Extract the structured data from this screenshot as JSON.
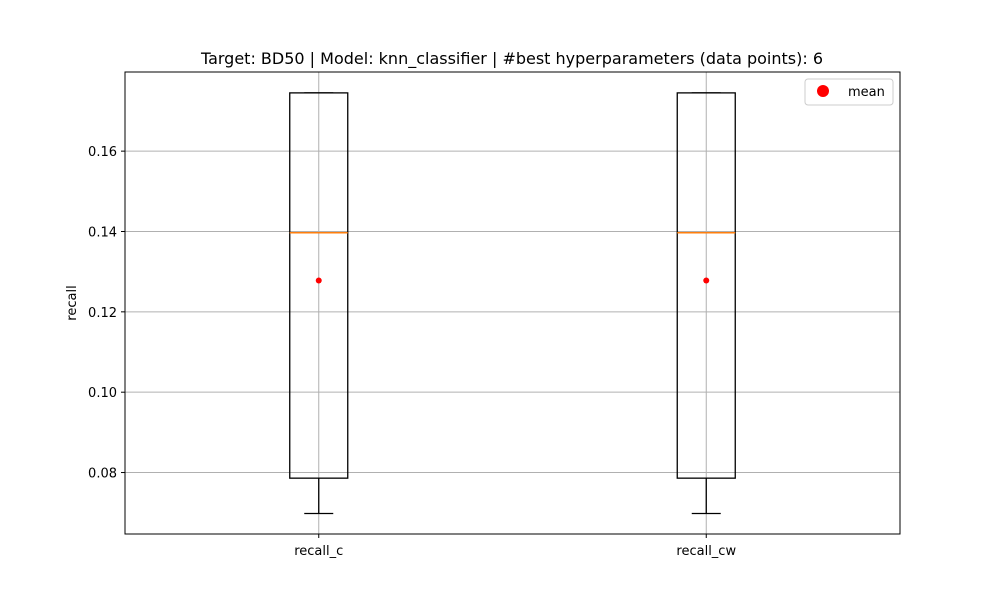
{
  "chart_data": {
    "type": "box",
    "title": "Target: BD50 | Model: knn_classifier | #best hyperparameters (data points): 6",
    "xlabel": "",
    "ylabel": "recall",
    "categories": [
      "recall_c",
      "recall_cw"
    ],
    "boxes": [
      {
        "name": "recall_c",
        "whisker_low": 0.0698,
        "q1": 0.0786,
        "median": 0.1397,
        "q3": 0.1745,
        "whisker_high": 0.1745,
        "mean": 0.1278
      },
      {
        "name": "recall_cw",
        "whisker_low": 0.0698,
        "q1": 0.0786,
        "median": 0.1397,
        "q3": 0.1745,
        "whisker_high": 0.1745,
        "mean": 0.1278
      }
    ],
    "ylim": [
      0.0647,
      0.1797
    ],
    "yticks": [
      0.08,
      0.1,
      0.12,
      0.14,
      0.16
    ],
    "ytick_labels": [
      "0.08",
      "0.10",
      "0.12",
      "0.14",
      "0.16"
    ],
    "grid": true,
    "legend": {
      "position": "top-right",
      "entries": [
        {
          "label": "mean",
          "marker": "circle",
          "color": "#ff0000"
        }
      ]
    },
    "colors": {
      "box": "#000000",
      "median": "#ff7f0e",
      "mean": "#ff0000",
      "grid": "#b0b0b0"
    }
  }
}
